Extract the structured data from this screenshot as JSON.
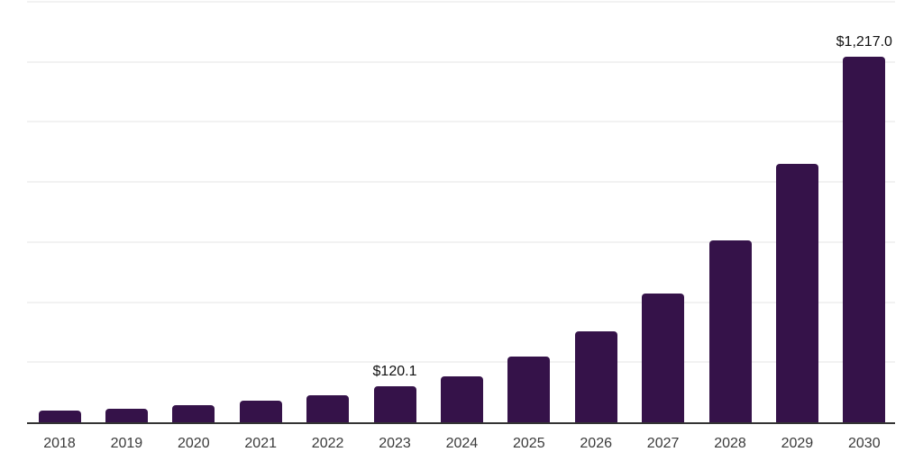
{
  "chart_data": {
    "type": "bar",
    "categories": [
      "2018",
      "2019",
      "2020",
      "2021",
      "2022",
      "2023",
      "2024",
      "2025",
      "2026",
      "2027",
      "2028",
      "2029",
      "2030"
    ],
    "values": [
      38,
      44,
      57,
      72,
      90,
      120.1,
      153,
      219,
      303,
      430,
      607,
      859,
      1217
    ],
    "value_labels": {
      "2023": "$120.1",
      "2030": "$1,217.0"
    },
    "title": "",
    "xlabel": "",
    "ylabel": "",
    "ylim": [
      0,
      1400
    ],
    "grid_step": 200,
    "grid_visible": true,
    "legend": null,
    "colors": {
      "bar": "#351249",
      "axis": "#333333",
      "grid": "#f2f2f2",
      "tick_label": "#3a3a3a",
      "value_label": "#111111",
      "background": "#ffffff"
    }
  }
}
